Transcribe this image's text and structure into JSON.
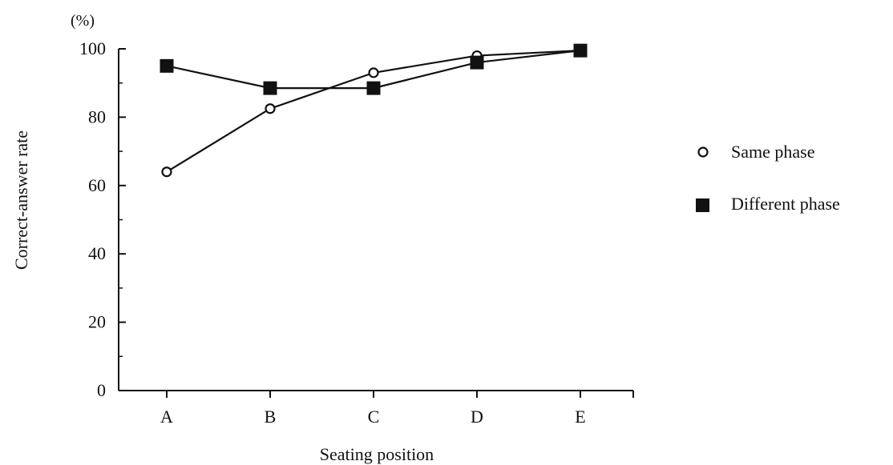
{
  "chart_data": {
    "type": "line",
    "categories": [
      "A",
      "B",
      "C",
      "D",
      "E"
    ],
    "series": [
      {
        "name": "Same phase",
        "marker": "open-circle",
        "values": [
          64,
          82.5,
          93,
          98,
          99.5
        ]
      },
      {
        "name": "Different phase",
        "marker": "filled-square",
        "values": [
          95,
          88.5,
          88.5,
          96,
          99.5
        ]
      }
    ],
    "xlabel": "Seating position",
    "ylabel": "Correct-answer rate",
    "yunit": "(%)",
    "ylim": [
      0,
      100
    ],
    "yticks": [
      0,
      20,
      40,
      60,
      80,
      100
    ],
    "grid": false,
    "legend_position": "right",
    "colors": {
      "line": "#111111",
      "marker_fill_open": "#ffffff",
      "marker_fill_solid": "#111111"
    }
  }
}
